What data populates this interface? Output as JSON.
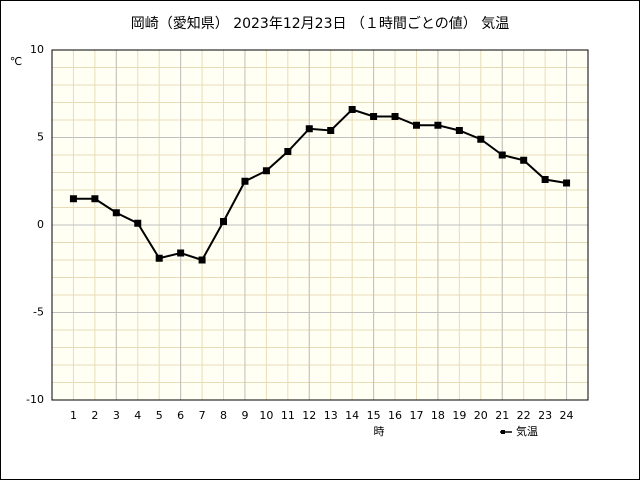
{
  "chart_data": {
    "type": "line",
    "title": "岡崎（愛知県） 2023年12月23日 （１時間ごとの値） 気温",
    "y_unit": "℃",
    "xlabel": "時",
    "x": [
      1,
      2,
      3,
      4,
      5,
      6,
      7,
      8,
      9,
      10,
      11,
      12,
      13,
      14,
      15,
      16,
      17,
      18,
      19,
      20,
      21,
      22,
      23,
      24
    ],
    "series": [
      {
        "name": "気温",
        "color": "#000000",
        "values": [
          1.5,
          1.5,
          0.7,
          0.1,
          -1.9,
          -1.6,
          -2.0,
          0.2,
          2.5,
          3.1,
          4.2,
          5.5,
          5.4,
          6.6,
          6.2,
          6.2,
          5.7,
          5.7,
          5.4,
          4.9,
          4.0,
          3.7,
          2.6,
          2.4
        ]
      }
    ],
    "xlim": [
      0,
      25
    ],
    "xticks": [
      1,
      2,
      3,
      4,
      5,
      6,
      7,
      8,
      9,
      10,
      11,
      12,
      13,
      14,
      15,
      16,
      17,
      18,
      19,
      20,
      21,
      22,
      23,
      24
    ],
    "x_major_grid": [
      3,
      6,
      9,
      12,
      15,
      18,
      21,
      24
    ],
    "ylim": [
      -10,
      10
    ],
    "yticks": [
      -10,
      -5,
      0,
      5,
      10
    ],
    "y_minor_grid": [
      -9,
      -8,
      -7,
      -6,
      -4,
      -3,
      -2,
      -1,
      1,
      2,
      3,
      4,
      6,
      7,
      8,
      9
    ],
    "grid": true,
    "legend": "bottom-right"
  }
}
